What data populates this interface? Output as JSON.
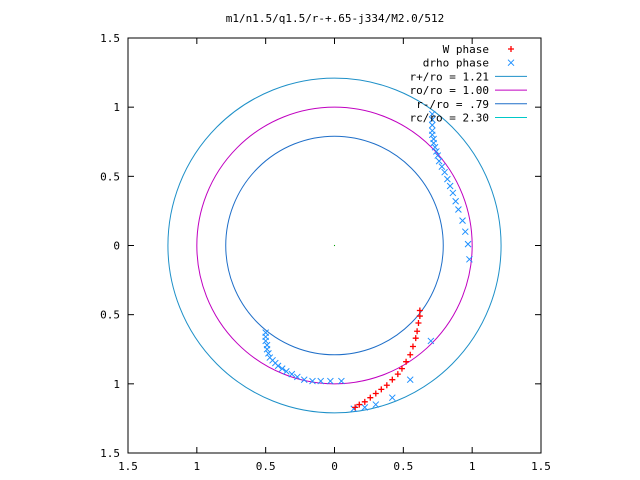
{
  "chart_data": {
    "type": "scatter",
    "title": "m1/n1.5/q1.5/r-+.65-j334/M2.0/512",
    "xlabel": "",
    "ylabel": "",
    "xlim": [
      -1.5,
      1.5
    ],
    "ylim": [
      -1.5,
      1.5
    ],
    "x_ticks": [
      -1.5,
      -1,
      -0.5,
      0,
      0.5,
      1,
      1.5
    ],
    "y_ticks": [
      -1.5,
      -1,
      -0.5,
      0,
      0.5,
      1,
      1.5
    ],
    "x_tick_labels": [
      "1.5",
      "1",
      "0.5",
      "0",
      "0.5",
      "1",
      "1.5"
    ],
    "y_tick_labels": [
      "1.5",
      "1",
      "0.5",
      "0",
      "0.5",
      "1",
      "1.5"
    ],
    "grid": false,
    "legend_position": "top-right",
    "legend": [
      {
        "label": "W phase",
        "marker": "+",
        "color": "#ff0000"
      },
      {
        "label": "drho phase",
        "marker": "x",
        "color": "#1e90ff"
      },
      {
        "label": "r+/ro = 1.21",
        "marker": "line",
        "color": "#1e90c8"
      },
      {
        "label": "ro/ro = 1.00",
        "marker": "line",
        "color": "#c000c0"
      },
      {
        "label": "r-/ro = .79",
        "marker": "line",
        "color": "#1e6ec8"
      },
      {
        "label": "rc/ro = 2.30",
        "marker": "line",
        "color": "#00c8c8"
      }
    ],
    "circles": [
      {
        "name": "r+/ro = 1.21",
        "r": 1.21,
        "color": "#1e90c8"
      },
      {
        "name": "ro/ro = 1.00",
        "r": 1.0,
        "color": "#c000c0"
      },
      {
        "name": "r-/ro = .79",
        "r": 0.79,
        "color": "#1e6ec8"
      }
    ],
    "w_phase": {
      "color": "#ff0000",
      "x": [
        0.15,
        0.18,
        0.22,
        0.26,
        0.3,
        0.34,
        0.38,
        0.42,
        0.46,
        0.49,
        0.52,
        0.55,
        0.57,
        0.59,
        0.6,
        0.61,
        0.62,
        0.62
      ],
      "y": [
        -1.17,
        -1.15,
        -1.13,
        -1.1,
        -1.07,
        -1.04,
        -1.01,
        -0.97,
        -0.93,
        -0.89,
        -0.84,
        -0.79,
        -0.73,
        -0.67,
        -0.62,
        -0.56,
        -0.51,
        -0.47
      ]
    },
    "drho_phase": {
      "color": "#1e90ff",
      "x": [
        0.71,
        0.71,
        0.71,
        0.71,
        0.71,
        0.72,
        0.72,
        0.73,
        0.74,
        0.75,
        0.76,
        0.78,
        0.8,
        0.82,
        0.84,
        0.86,
        0.88,
        0.9,
        0.93,
        0.95,
        0.97,
        0.98,
        -0.5,
        -0.5,
        -0.5,
        -0.49,
        -0.49,
        -0.48,
        -0.47,
        -0.45,
        -0.43,
        -0.41,
        -0.38,
        -0.35,
        -0.31,
        -0.27,
        -0.22,
        -0.16,
        -0.1,
        -0.03,
        0.05,
        0.14,
        0.22,
        0.3,
        0.42,
        0.55,
        0.7
      ],
      "y": [
        0.95,
        0.91,
        0.87,
        0.83,
        0.8,
        0.77,
        0.74,
        0.71,
        0.68,
        0.65,
        0.61,
        0.57,
        0.53,
        0.48,
        0.43,
        0.38,
        0.32,
        0.26,
        0.18,
        0.1,
        0.01,
        -0.1,
        -0.63,
        -0.66,
        -0.69,
        -0.72,
        -0.75,
        -0.78,
        -0.81,
        -0.83,
        -0.85,
        -0.87,
        -0.89,
        -0.91,
        -0.93,
        -0.95,
        -0.97,
        -0.98,
        -0.98,
        -0.98,
        -0.98,
        -1.18,
        -1.17,
        -1.15,
        -1.1,
        -0.97,
        -0.69
      ]
    }
  }
}
